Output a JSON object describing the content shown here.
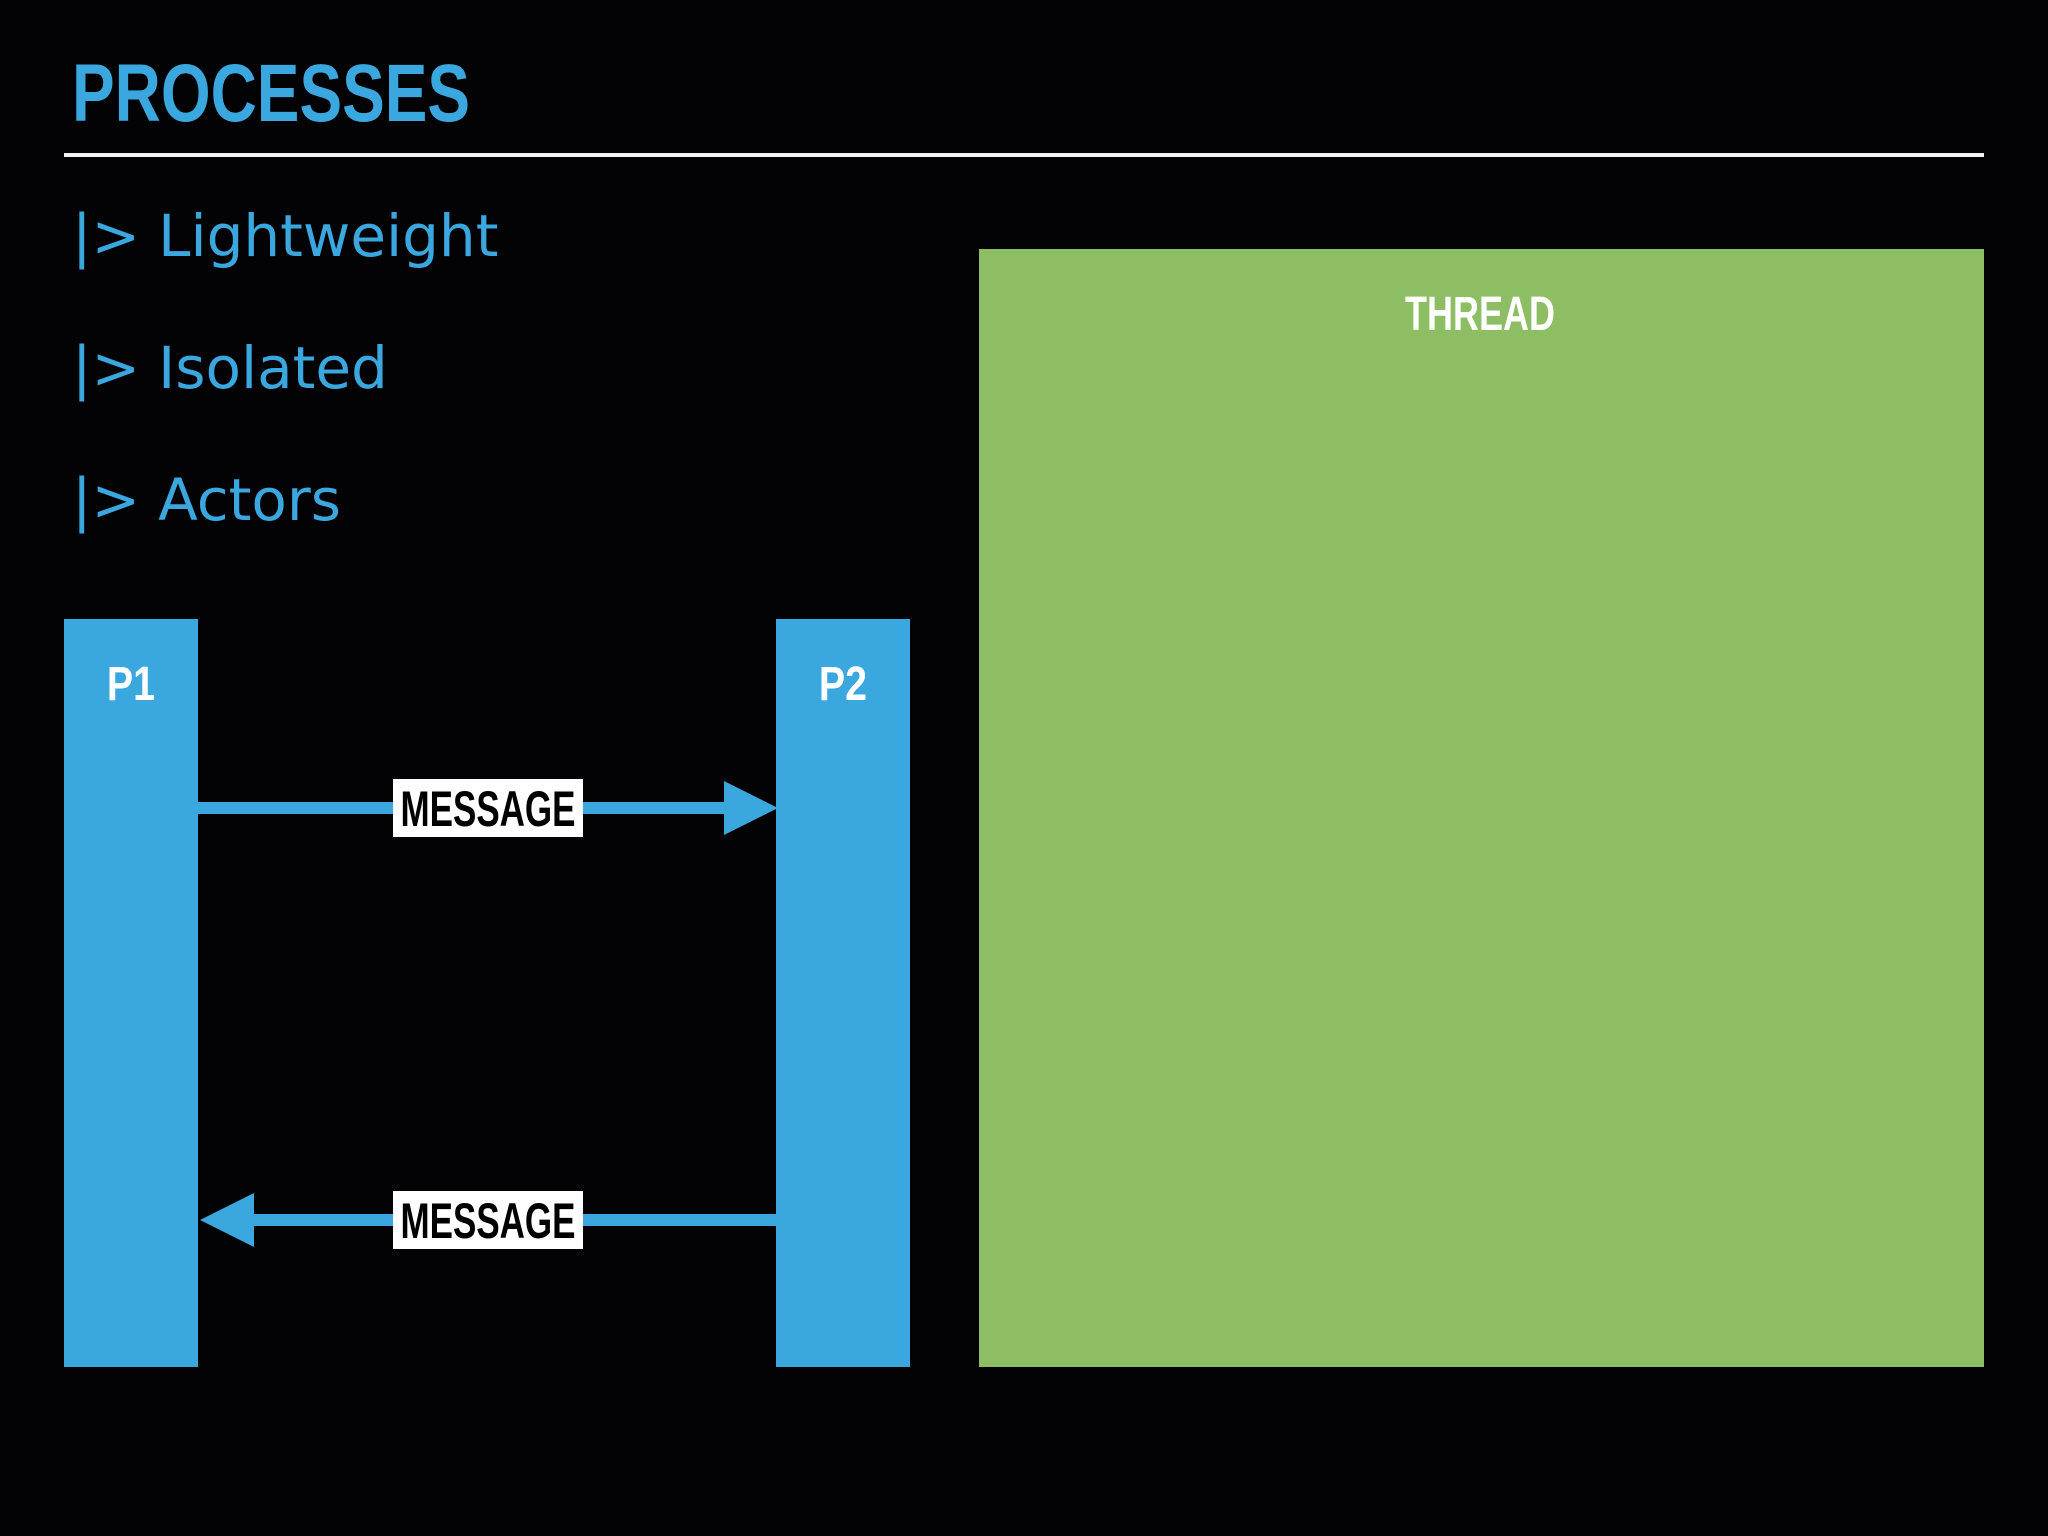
{
  "slide": {
    "title": "PROCESSES",
    "bullets": [
      {
        "marker": "|>",
        "text": "Lightweight"
      },
      {
        "marker": "|>",
        "text": "Isolated"
      },
      {
        "marker": "|>",
        "text": "Actors"
      }
    ]
  },
  "diagram": {
    "process_1": {
      "label": "P1"
    },
    "process_2": {
      "label": "P2"
    },
    "messages": [
      {
        "label": "MESSAGE",
        "direction": "P1 to P2"
      },
      {
        "label": "MESSAGE",
        "direction": "P2 to P1"
      }
    ],
    "thread": {
      "label": "THREAD"
    }
  },
  "colors": {
    "background": "#030305",
    "accent_blue": "#3aa7de",
    "thread_green": "#8dbe63",
    "rule_white": "#f2f2f2",
    "label_box_white": "#ffffff",
    "label_text_black": "#000000"
  }
}
